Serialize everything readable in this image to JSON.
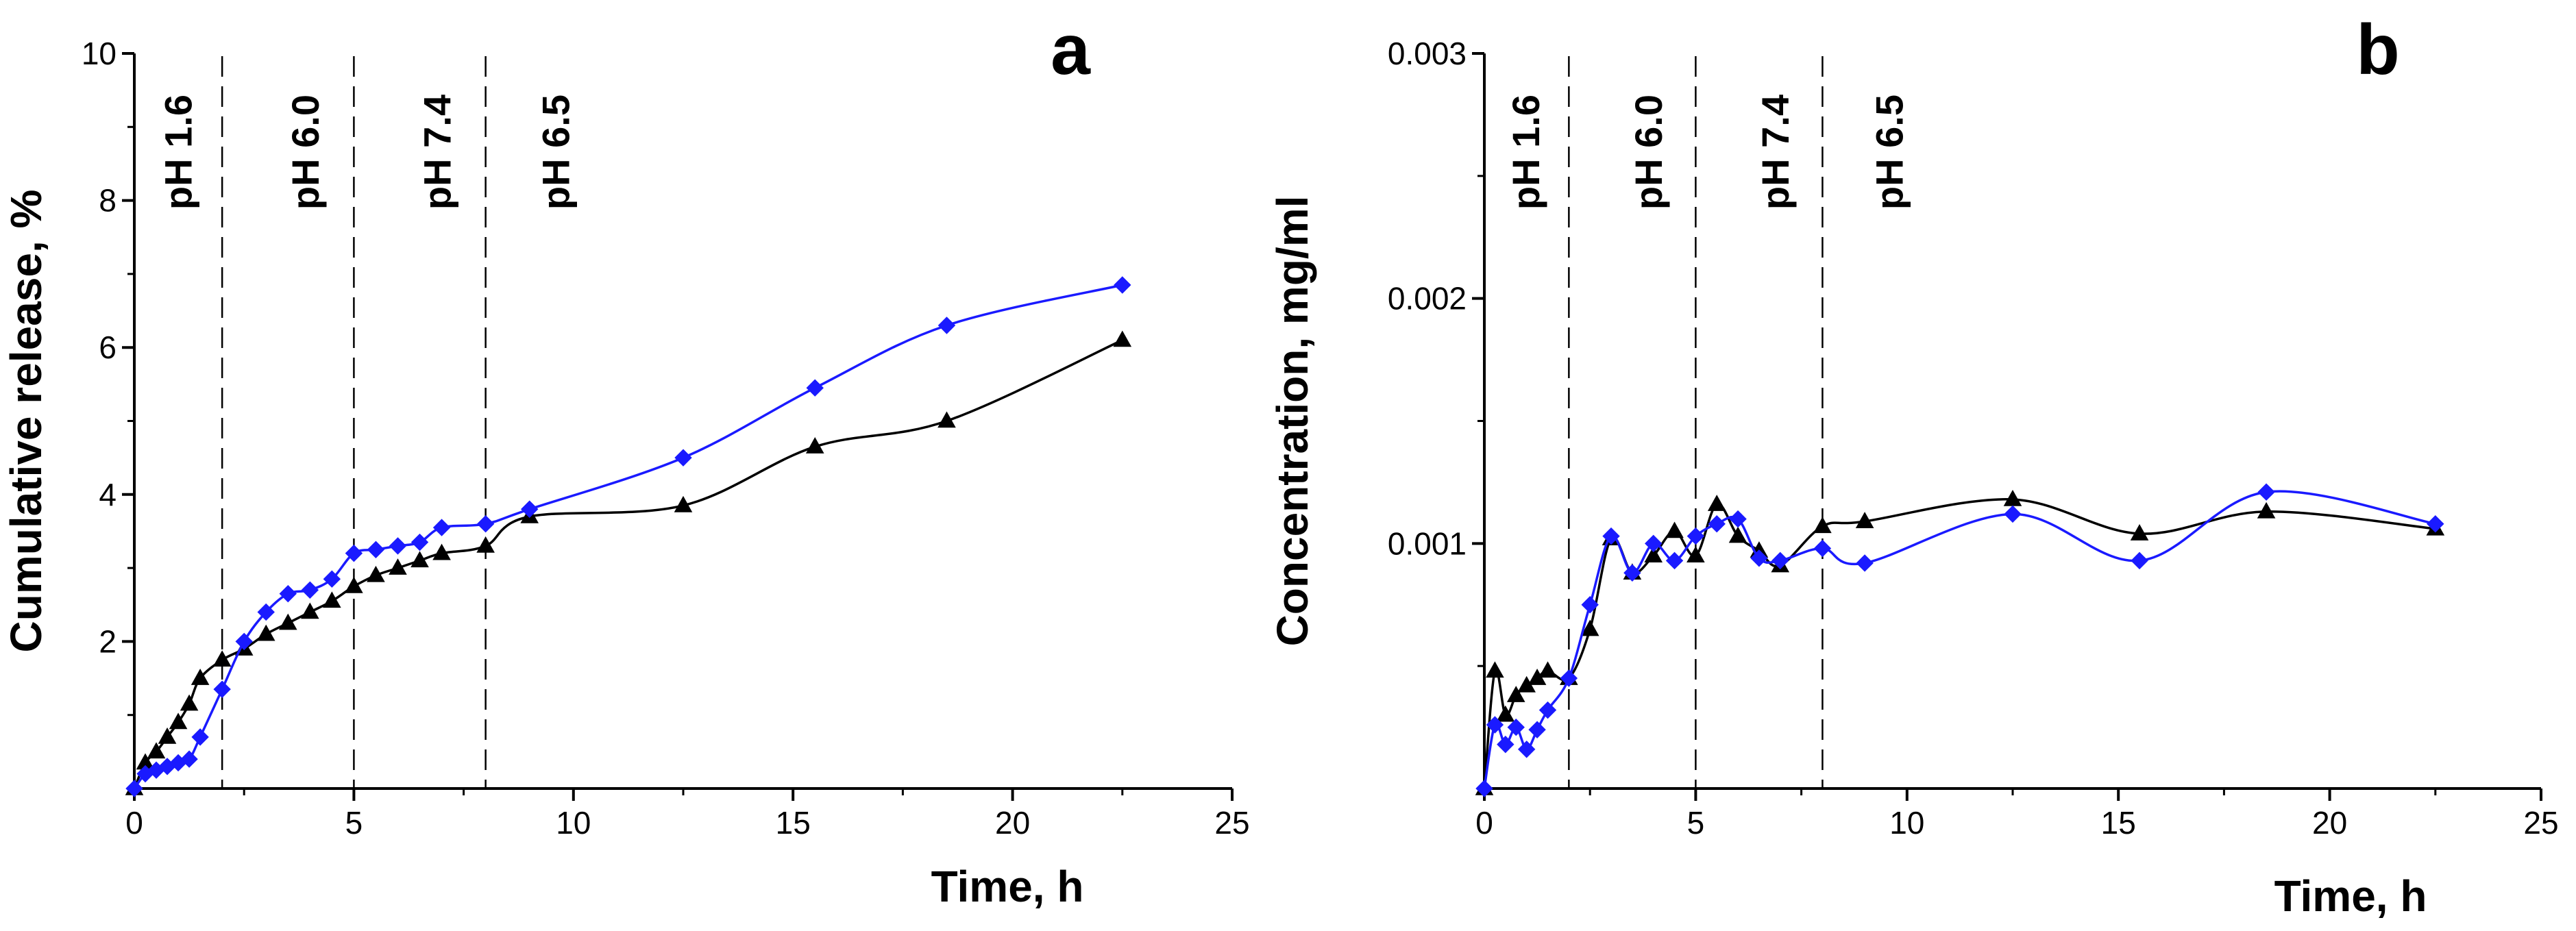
{
  "chart_data": [
    {
      "type": "line",
      "panel_label": "a",
      "xlabel": "Time, h",
      "ylabel": "Cumulative release, %",
      "xlim": [
        0,
        25
      ],
      "ylim": [
        0,
        10
      ],
      "xticks": [
        "0",
        "5",
        "10",
        "15",
        "20",
        "25"
      ],
      "yticks": [
        "2",
        "4",
        "6",
        "8",
        "10"
      ],
      "phase_boundaries": [
        2,
        5,
        8
      ],
      "phase_labels": [
        {
          "text": "pH 1.6",
          "x": 1.3
        },
        {
          "text": "pH 6.0",
          "x": 4.2
        },
        {
          "text": "pH 7.4",
          "x": 7.2
        },
        {
          "text": "pH 6.5",
          "x": 9.9
        }
      ],
      "series": [
        {
          "name": "blue diamonds",
          "color": "#1a1aff",
          "marker": "diamond",
          "x": [
            0,
            0.25,
            0.5,
            0.75,
            1.0,
            1.25,
            1.5,
            2.0,
            2.5,
            3.0,
            3.5,
            4.0,
            4.5,
            5.0,
            5.5,
            6.0,
            6.5,
            7.0,
            8.0,
            9.0,
            12.5,
            15.5,
            18.5,
            22.5
          ],
          "y": [
            0,
            0.2,
            0.25,
            0.3,
            0.35,
            0.4,
            0.7,
            1.35,
            2.0,
            2.4,
            2.65,
            2.7,
            2.85,
            3.2,
            3.25,
            3.3,
            3.35,
            3.55,
            3.6,
            3.8,
            4.5,
            5.45,
            6.3,
            6.85
          ]
        },
        {
          "name": "black triangles",
          "color": "#000000",
          "marker": "triangle",
          "x": [
            0,
            0.25,
            0.5,
            0.75,
            1.0,
            1.25,
            1.5,
            2.0,
            2.5,
            3.0,
            3.5,
            4.0,
            4.5,
            5.0,
            5.5,
            6.0,
            6.5,
            7.0,
            8.0,
            9.0,
            12.5,
            15.5,
            18.5,
            22.5
          ],
          "y": [
            0,
            0.35,
            0.5,
            0.7,
            0.9,
            1.15,
            1.5,
            1.75,
            1.9,
            2.1,
            2.25,
            2.4,
            2.55,
            2.75,
            2.9,
            3.0,
            3.1,
            3.2,
            3.3,
            3.7,
            3.85,
            4.65,
            5.0,
            6.1
          ]
        }
      ]
    },
    {
      "type": "line",
      "panel_label": "b",
      "xlabel": "Time, h",
      "ylabel": "Concentration, mg/ml",
      "xlim": [
        0,
        25
      ],
      "ylim": [
        0,
        0.003
      ],
      "xticks": [
        "0",
        "5",
        "10",
        "15",
        "20",
        "25"
      ],
      "yticks": [
        "0.001",
        "0.002",
        "0.003"
      ],
      "phase_boundaries": [
        2,
        5,
        8
      ],
      "phase_labels": [
        {
          "text": "pH 1.6",
          "x": 1.3
        },
        {
          "text": "pH 6.0",
          "x": 4.2
        },
        {
          "text": "pH 7.4",
          "x": 7.2
        },
        {
          "text": "pH 6.5",
          "x": 9.9
        }
      ],
      "series": [
        {
          "name": "blue diamonds",
          "color": "#1a1aff",
          "marker": "diamond",
          "x": [
            0,
            0.25,
            0.5,
            0.75,
            1.0,
            1.25,
            1.5,
            2.0,
            2.5,
            3.0,
            3.5,
            4.0,
            4.5,
            5.0,
            5.5,
            6.0,
            6.5,
            7.0,
            8.0,
            9.0,
            12.5,
            15.5,
            18.5,
            22.5
          ],
          "y": [
            0,
            0.00026,
            0.00018,
            0.00025,
            0.00016,
            0.00024,
            0.00032,
            0.00045,
            0.00075,
            0.00103,
            0.00088,
            0.001,
            0.00093,
            0.00103,
            0.00108,
            0.0011,
            0.00094,
            0.00093,
            0.00098,
            0.00092,
            0.00112,
            0.00093,
            0.00121,
            0.00108
          ]
        },
        {
          "name": "black triangles",
          "color": "#000000",
          "marker": "triangle",
          "x": [
            0,
            0.25,
            0.5,
            0.75,
            1.0,
            1.25,
            1.5,
            2.0,
            2.5,
            3.0,
            3.5,
            4.0,
            4.5,
            5.0,
            5.5,
            6.0,
            6.5,
            7.0,
            8.0,
            9.0,
            12.5,
            15.5,
            18.5,
            22.5
          ],
          "y": [
            0,
            0.00048,
            0.0003,
            0.00038,
            0.00042,
            0.00045,
            0.00048,
            0.00045,
            0.00065,
            0.00102,
            0.00088,
            0.00095,
            0.00105,
            0.00095,
            0.00116,
            0.00103,
            0.00097,
            0.00091,
            0.00107,
            0.00109,
            0.00118,
            0.00104,
            0.00113,
            0.00106
          ]
        }
      ]
    }
  ]
}
